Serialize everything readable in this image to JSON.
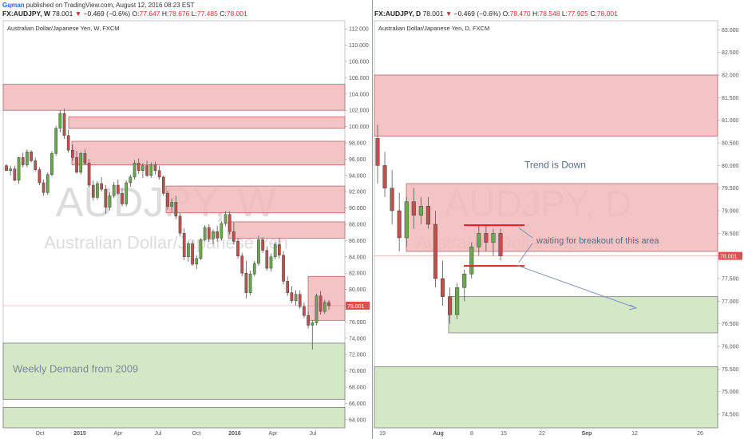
{
  "header": {
    "author": "Gqman",
    "published_text": "published on TradingView.com, August 12, 2016 08:23 EST"
  },
  "panels": [
    {
      "symbol": "FX:AUDJPY, W",
      "last": "78.001",
      "change": "−0.469 (−0.6%)",
      "o_label": "O:",
      "o": "77.647",
      "h_label": "H:",
      "h": "78.676",
      "l_label": "L:",
      "l": "77.485",
      "c_label": "C:",
      "c": "78.001",
      "subtitle": "Australian Dollar/Japanese Yen, W, FXCM",
      "watermark_big": "AUDJPY, W",
      "watermark_small": "Australian Dollar/Japanese Yen",
      "annotation": "Weekly Demand from 2009"
    },
    {
      "symbol": "FX:AUDJPY, D",
      "last": "78.001",
      "change": "−0.469 (−0.6%)",
      "o_label": "O:",
      "o": "78.470",
      "h_label": "H:",
      "h": "78.548",
      "l_label": "L:",
      "l": "77.925",
      "c_label": "C:",
      "c": "78.001",
      "subtitle": "Australian Dollar/Japanese Yen, D, FXCM",
      "watermark_big": "AUDJPY, D",
      "watermark_small": "Australian Dollar/Japanese Yen",
      "annotation_trend": "Trend is Down",
      "annotation_breakout": "waiting for breakout of this area"
    }
  ],
  "colors": {
    "supply": "#f2b8b8",
    "supply_border": "#b56a6a",
    "demand": "#cfe5c0",
    "demand_border": "#7a7a7a",
    "candle_up": "#6aa84f",
    "candle_down": "#c0504d",
    "price_tag": "#e05050",
    "arrow": "#7a96c2",
    "level_line": "#e02020"
  },
  "chart_data": [
    {
      "type": "candlestick",
      "ylim": [
        63,
        113
      ],
      "y_ticks": [
        "112.000",
        "110.000",
        "108.000",
        "106.000",
        "104.000",
        "102.000",
        "100.000",
        "98.000",
        "96.000",
        "94.000",
        "92.000",
        "90.000",
        "88.000",
        "86.000",
        "84.000",
        "82.000",
        "80.000",
        "78.000",
        "76.000",
        "74.000",
        "72.000",
        "70.000",
        "68.000",
        "66.000",
        "64.000"
      ],
      "x_ticks": [
        "Oct",
        "2015",
        "Apr",
        "Jul",
        "Oct",
        "2016",
        "Apr",
        "Jul"
      ],
      "last_price": "78.001",
      "last_value": 78.001,
      "supply_zones": [
        [
          102,
          105.2
        ],
        [
          99.8,
          101.2
        ],
        [
          95.3,
          98.2
        ],
        [
          89.4,
          92.7
        ],
        [
          86.3,
          88.3
        ],
        [
          76.2,
          81.6
        ]
      ],
      "demand_zones": [
        [
          66.5,
          73.4
        ],
        [
          63,
          65.5
        ]
      ],
      "candles": [
        [
          95.2,
          95.4,
          94.6,
          94.6
        ],
        [
          94.6,
          95.2,
          94.0,
          94.8
        ],
        [
          94.8,
          95.2,
          93.3,
          93.4
        ],
        [
          93.4,
          96.3,
          93.0,
          96.2
        ],
        [
          96.2,
          96.8,
          95.0,
          95.3
        ],
        [
          95.3,
          97.2,
          95.0,
          96.9
        ],
        [
          96.9,
          97.1,
          95.6,
          95.8
        ],
        [
          95.8,
          96.2,
          94.5,
          94.7
        ],
        [
          94.7,
          95.0,
          92.8,
          93.1
        ],
        [
          93.1,
          93.5,
          91.5,
          91.9
        ],
        [
          91.9,
          94.4,
          91.6,
          94.1
        ],
        [
          94.1,
          97.0,
          93.9,
          96.7
        ],
        [
          96.7,
          100.1,
          96.4,
          99.8
        ],
        [
          99.8,
          102.0,
          99.3,
          101.6
        ],
        [
          101.6,
          102.2,
          98.5,
          98.9
        ],
        [
          98.9,
          99.6,
          96.8,
          97.1
        ],
        [
          97.1,
          97.8,
          95.8,
          96.2
        ],
        [
          96.2,
          97.0,
          94.2,
          94.4
        ],
        [
          94.4,
          96.9,
          94.1,
          96.7
        ],
        [
          96.7,
          97.2,
          95.3,
          95.5
        ],
        [
          95.5,
          96.0,
          92.5,
          92.8
        ],
        [
          92.8,
          93.4,
          90.9,
          91.3
        ],
        [
          91.3,
          93.3,
          91.0,
          93.0
        ],
        [
          93.0,
          93.8,
          92.0,
          92.3
        ],
        [
          92.3,
          92.8,
          89.3,
          90.1
        ],
        [
          90.1,
          91.9,
          89.7,
          91.5
        ],
        [
          91.5,
          93.2,
          91.2,
          92.8
        ],
        [
          92.8,
          93.5,
          91.6,
          91.8
        ],
        [
          91.8,
          92.4,
          90.2,
          90.5
        ],
        [
          90.5,
          93.4,
          90.2,
          93.1
        ],
        [
          93.1,
          94.1,
          92.6,
          93.8
        ],
        [
          93.8,
          95.9,
          93.5,
          95.5
        ],
        [
          95.5,
          96.1,
          94.2,
          94.6
        ],
        [
          94.6,
          95.5,
          93.7,
          95.2
        ],
        [
          95.2,
          95.8,
          93.8,
          94.0
        ],
        [
          94.0,
          95.6,
          93.7,
          95.3
        ],
        [
          95.3,
          95.7,
          94.1,
          94.6
        ],
        [
          94.6,
          95.2,
          93.5,
          93.8
        ],
        [
          93.8,
          94.0,
          91.5,
          91.8
        ],
        [
          91.8,
          92.1,
          89.8,
          90.2
        ],
        [
          90.2,
          91.2,
          89.5,
          90.7
        ],
        [
          90.7,
          91.5,
          88.6,
          89.0
        ],
        [
          89.0,
          89.4,
          86.5,
          86.9
        ],
        [
          86.9,
          87.5,
          83.6,
          84.0
        ],
        [
          84.0,
          85.9,
          83.4,
          85.6
        ],
        [
          85.6,
          86.0,
          82.9,
          83.1
        ],
        [
          83.1,
          84.2,
          82.5,
          83.8
        ],
        [
          83.8,
          86.3,
          83.6,
          86.1
        ],
        [
          86.1,
          87.9,
          85.9,
          87.6
        ],
        [
          87.6,
          88.0,
          85.8,
          86.2
        ],
        [
          86.2,
          87.4,
          85.5,
          87.1
        ],
        [
          87.1,
          87.8,
          85.9,
          86.3
        ],
        [
          86.3,
          88.4,
          86.0,
          88.1
        ],
        [
          88.1,
          89.6,
          87.8,
          89.2
        ],
        [
          89.2,
          89.6,
          86.7,
          87.1
        ],
        [
          87.1,
          88.2,
          85.5,
          85.9
        ],
        [
          85.9,
          86.3,
          83.8,
          84.1
        ],
        [
          84.1,
          84.5,
          81.6,
          82.0
        ],
        [
          82.0,
          83.5,
          78.9,
          79.6
        ],
        [
          79.6,
          82.3,
          79.3,
          81.9
        ],
        [
          81.9,
          83.5,
          81.6,
          83.2
        ],
        [
          83.2,
          86.6,
          82.9,
          86.1
        ],
        [
          86.1,
          86.4,
          84.5,
          84.8
        ],
        [
          84.8,
          85.3,
          82.3,
          82.6
        ],
        [
          82.6,
          84.4,
          82.2,
          84.0
        ],
        [
          84.0,
          85.8,
          83.7,
          85.5
        ],
        [
          85.5,
          86.3,
          83.8,
          84.2
        ],
        [
          84.2,
          84.7,
          80.6,
          81.0
        ],
        [
          81.0,
          81.6,
          79.2,
          79.6
        ],
        [
          79.6,
          80.4,
          78.3,
          78.6
        ],
        [
          78.6,
          79.9,
          78.0,
          79.4
        ],
        [
          79.4,
          79.9,
          77.6,
          77.9
        ],
        [
          77.9,
          78.4,
          76.5,
          76.8
        ],
        [
          76.8,
          77.3,
          75.2,
          75.6
        ],
        [
          75.6,
          76.2,
          72.6,
          75.9
        ],
        [
          75.9,
          79.5,
          75.6,
          79.2
        ],
        [
          79.2,
          79.8,
          76.9,
          77.3
        ],
        [
          77.3,
          78.7,
          77.0,
          78.4
        ],
        [
          78.4,
          78.7,
          77.5,
          78.0
        ]
      ]
    },
    {
      "type": "candlestick",
      "ylim": [
        74.2,
        83.2
      ],
      "y_ticks": [
        "83.000",
        "82.500",
        "82.000",
        "81.500",
        "81.000",
        "80.500",
        "80.000",
        "79.500",
        "79.000",
        "78.500",
        "78.000",
        "77.500",
        "77.000",
        "76.500",
        "76.000",
        "75.500",
        "75.000",
        "74.500"
      ],
      "x_ticks": [
        "19",
        "Aug",
        "8",
        "15",
        "22",
        "Sep",
        "12",
        "26"
      ],
      "last_price": "78.001",
      "last_value": 78.001,
      "supply_zones": [
        [
          80.65,
          82.0
        ],
        [
          78.1,
          79.6
        ]
      ],
      "demand_zones": [
        [
          76.3,
          77.1
        ],
        [
          74.2,
          75.55
        ]
      ],
      "breakout_levels": [
        78.68,
        77.78
      ],
      "candles": [
        [
          80.6,
          80.9,
          79.6,
          80.0
        ],
        [
          80.0,
          80.3,
          79.3,
          79.5
        ],
        [
          79.5,
          79.9,
          78.7,
          79.0
        ],
        [
          79.0,
          79.4,
          78.1,
          78.4
        ],
        [
          78.4,
          79.3,
          78.2,
          79.2
        ],
        [
          79.2,
          79.5,
          78.6,
          78.9
        ],
        [
          78.9,
          79.3,
          78.7,
          79.1
        ],
        [
          79.1,
          79.3,
          78.6,
          78.7
        ],
        [
          78.7,
          79.0,
          77.3,
          77.5
        ],
        [
          77.5,
          77.9,
          76.9,
          77.1
        ],
        [
          77.1,
          77.3,
          76.5,
          76.7
        ],
        [
          76.7,
          77.4,
          76.6,
          77.3
        ],
        [
          77.3,
          77.7,
          77.0,
          77.6
        ],
        [
          77.6,
          78.3,
          77.5,
          78.2
        ],
        [
          78.2,
          78.7,
          78.0,
          78.5
        ],
        [
          78.5,
          78.7,
          78.1,
          78.3
        ],
        [
          78.3,
          78.6,
          78.0,
          78.5
        ],
        [
          78.5,
          78.6,
          77.9,
          78.0
        ]
      ]
    }
  ]
}
